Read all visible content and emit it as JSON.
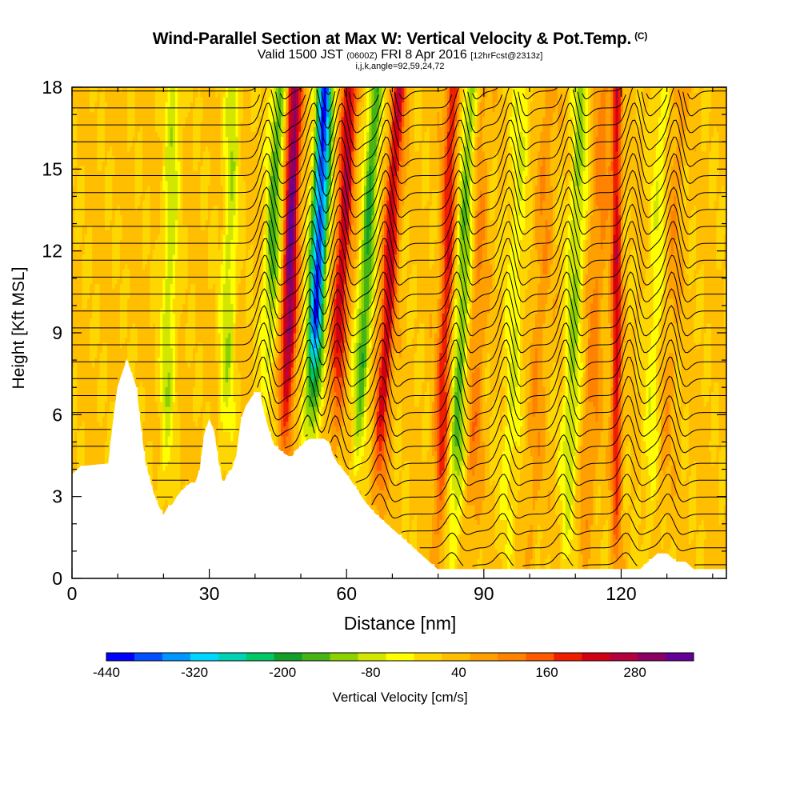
{
  "titles": {
    "main": "Wind-Parallel Section at Max W: Vertical Velocity & Pot.Temp.",
    "copyright": "(C)",
    "valid_pre": "Valid 1500 JST",
    "valid_utc": "(0600Z)",
    "valid_post": "FRI 8 Apr 2016",
    "forecast": "[12hrFcst@2313z]",
    "indices": "i,j,k,angle=92,59,24,72"
  },
  "chart_data": {
    "type": "heatmap",
    "title": "Wind-Parallel Section at Max W: Vertical Velocity & Pot.Temp.",
    "xlabel": "Distance [nm]",
    "ylabel": "Height [Kft MSL]",
    "xlim": [
      0,
      143
    ],
    "ylim": [
      0,
      18
    ],
    "xticks": [
      0,
      30,
      60,
      90,
      120
    ],
    "yticks": [
      0,
      3,
      6,
      9,
      12,
      15,
      18
    ],
    "colorbar": {
      "label": "Vertical Velocity [cm/s]",
      "range": [
        -440,
        360
      ],
      "tick_values": [
        -440,
        -320,
        -200,
        -80,
        40,
        160,
        280
      ],
      "colors": [
        "#0000ff",
        "#0050ff",
        "#0096ff",
        "#00d7ff",
        "#00d2b4",
        "#00c864",
        "#14a028",
        "#46b414",
        "#8cd200",
        "#d2e600",
        "#ffff00",
        "#ffd700",
        "#ffbe00",
        "#ffa000",
        "#ff8200",
        "#ff5a00",
        "#f01e00",
        "#d20014",
        "#b4003c",
        "#8c0064",
        "#640096"
      ]
    },
    "updrafts": [
      {
        "x": 46,
        "peak": 300,
        "width": 1.6,
        "tilt": 0.12
      },
      {
        "x": 56,
        "peak": 220,
        "width": 1.7,
        "tilt": 0.22
      },
      {
        "x": 66,
        "peak": 210,
        "width": 1.6,
        "tilt": 0.25
      },
      {
        "x": 80,
        "peak": 180,
        "width": 1.6,
        "tilt": 0.15
      },
      {
        "x": 119,
        "peak": 200,
        "width": 1.1,
        "tilt": 0.0
      },
      {
        "x": 87,
        "peak": 90,
        "width": 2.0,
        "tilt": 0.1
      },
      {
        "x": 100,
        "peak": 60,
        "width": 2.0,
        "tilt": 0.2
      },
      {
        "x": 112,
        "peak": 80,
        "width": 2.0,
        "tilt": 0.2
      },
      {
        "x": 128,
        "peak": 60,
        "width": 2.0,
        "tilt": 0.2
      }
    ],
    "downdrafts": [
      {
        "x": 51,
        "peak": -420,
        "width": 1.8,
        "tilt": 0.2
      },
      {
        "x": 41,
        "peak": -180,
        "width": 1.8,
        "tilt": 0.2
      },
      {
        "x": 61,
        "peak": -200,
        "width": 1.6,
        "tilt": 0.25
      },
      {
        "x": 83,
        "peak": -170,
        "width": 2.0,
        "tilt": 0.2
      },
      {
        "x": 20,
        "peak": -110,
        "width": 1.6,
        "tilt": 0.1
      },
      {
        "x": 33,
        "peak": -110,
        "width": 1.6,
        "tilt": 0.1
      },
      {
        "x": 108,
        "peak": -130,
        "width": 1.8,
        "tilt": 0.15
      },
      {
        "x": 95,
        "peak": -80,
        "width": 2.0,
        "tilt": 0.15
      },
      {
        "x": 126,
        "peak": -80,
        "width": 2.0,
        "tilt": 0.15
      }
    ],
    "terrain": {
      "x": [
        0,
        2,
        8,
        9,
        10,
        11,
        12,
        13,
        14,
        15,
        16,
        18,
        19,
        20,
        21,
        22,
        23,
        24,
        26,
        27,
        28,
        29,
        30,
        31,
        32,
        33,
        34,
        35,
        36,
        37,
        38,
        40,
        41,
        42,
        43,
        44,
        46,
        48,
        49,
        50,
        51,
        52,
        54,
        55,
        56,
        57,
        58,
        60,
        62,
        64,
        66,
        68,
        70,
        72,
        74,
        76,
        78,
        80,
        82,
        84,
        86,
        88,
        90,
        92,
        94,
        96,
        98,
        100,
        102,
        104,
        106,
        108,
        110,
        112,
        114,
        116,
        118,
        120,
        122,
        124,
        126,
        128,
        130,
        132,
        134,
        136,
        138,
        140,
        143
      ],
      "height": [
        3.8,
        4.1,
        4.2,
        5.7,
        7.0,
        7.5,
        8.0,
        7.5,
        7.0,
        5.5,
        4.2,
        3.0,
        2.6,
        2.3,
        2.6,
        2.7,
        3.0,
        3.2,
        3.5,
        3.5,
        4.0,
        5.3,
        5.8,
        5.4,
        4.2,
        3.4,
        3.8,
        4.0,
        4.5,
        5.8,
        6.3,
        6.8,
        6.8,
        6.0,
        5.4,
        4.9,
        4.6,
        4.4,
        4.7,
        4.8,
        5.0,
        5.1,
        5.1,
        5.1,
        5.0,
        4.5,
        4.2,
        3.8,
        3.3,
        2.8,
        2.4,
        2.1,
        1.8,
        1.5,
        1.2,
        0.9,
        0.6,
        0.3,
        0.3,
        0.3,
        0.3,
        0.3,
        0.3,
        0.3,
        0.3,
        0.3,
        0.3,
        0.3,
        0.3,
        0.3,
        0.3,
        0.3,
        0.3,
        0.3,
        0.3,
        0.3,
        0.3,
        0.3,
        0.3,
        0.3,
        0.6,
        0.9,
        0.9,
        0.6,
        0.6,
        0.3,
        0.3,
        0.3,
        0.3
      ]
    },
    "theta_contours": {
      "levels": 30,
      "wave_crests_x": [
        42,
        52,
        58,
        68,
        84,
        95,
        108,
        122,
        131
      ]
    }
  }
}
